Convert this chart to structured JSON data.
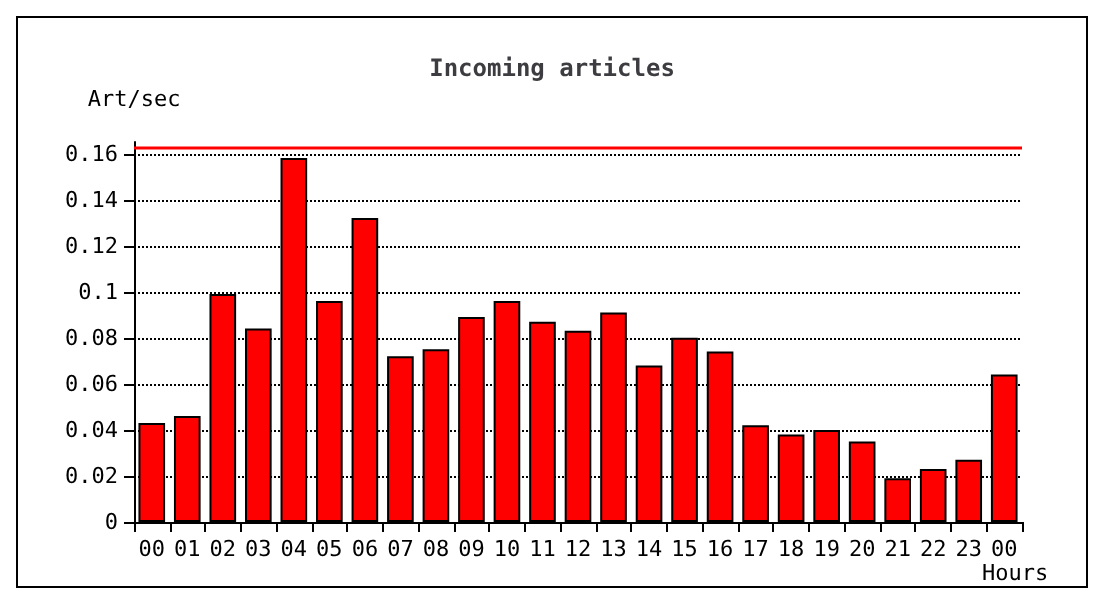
{
  "chart_data": {
    "type": "bar",
    "title": "Incoming articles",
    "xlabel": "Hours",
    "ylabel": "Art/sec",
    "categories": [
      "00",
      "01",
      "02",
      "03",
      "04",
      "05",
      "06",
      "07",
      "08",
      "09",
      "10",
      "11",
      "12",
      "13",
      "14",
      "15",
      "16",
      "17",
      "18",
      "19",
      "20",
      "21",
      "22",
      "23",
      "00"
    ],
    "values": [
      0.043,
      0.046,
      0.099,
      0.084,
      0.158,
      0.096,
      0.132,
      0.072,
      0.075,
      0.089,
      0.096,
      0.087,
      0.083,
      0.091,
      0.068,
      0.08,
      0.074,
      0.042,
      0.038,
      0.04,
      0.035,
      0.019,
      0.023,
      0.027,
      0.064
    ],
    "color": "#ff0000",
    "ylim": [
      0,
      0.165
    ],
    "yticks": [
      0,
      0.02,
      0.04,
      0.06,
      0.08,
      0.1,
      0.12,
      0.14,
      0.16
    ],
    "grid": "y",
    "ref_lines": [
      {
        "axis": "y",
        "value": 0.163,
        "color": "#ff0000"
      }
    ]
  }
}
